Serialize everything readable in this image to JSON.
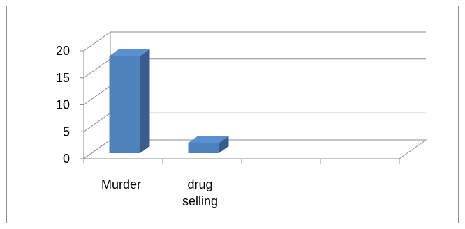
{
  "chart_data": {
    "type": "bar",
    "style": "3d-column",
    "categories": [
      "Murder",
      "drug selling",
      "",
      ""
    ],
    "category_lines": [
      [
        "Murder"
      ],
      [
        "drug",
        "selling"
      ],
      [],
      []
    ],
    "values": [
      19,
      2,
      null,
      null
    ],
    "ylim": [
      0,
      20
    ],
    "yticks": [
      0,
      5,
      10,
      15,
      20
    ],
    "grid": true,
    "legend": "none",
    "colors": {
      "bar_front": "#4f81bd",
      "bar_side": "#385d8a",
      "bar_top": "#5b8fd2",
      "grid": "#8c8c8c"
    }
  }
}
